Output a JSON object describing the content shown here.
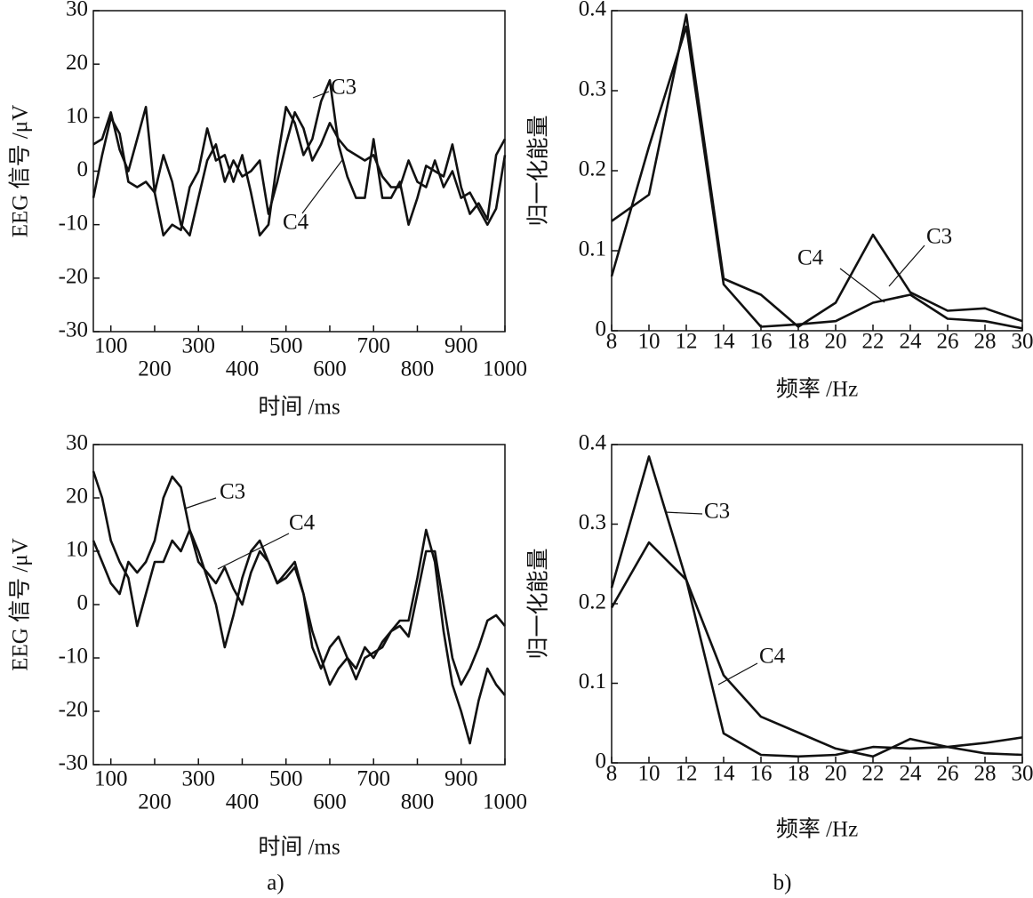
{
  "chart_data": [
    {
      "type": "line",
      "ylabel": "EEG 信号 /μV",
      "xlabel": "时间 /ms",
      "xlim": [
        60,
        1000
      ],
      "xticks": [
        100,
        200,
        300,
        400,
        500,
        600,
        700,
        800,
        900,
        1000
      ],
      "ylim": [
        -30,
        30
      ],
      "yticks": [
        -30,
        -20,
        -10,
        0,
        10,
        20,
        30
      ],
      "x": [
        60,
        80,
        100,
        120,
        140,
        160,
        180,
        200,
        220,
        240,
        260,
        280,
        300,
        320,
        340,
        360,
        380,
        400,
        420,
        440,
        460,
        480,
        500,
        520,
        540,
        560,
        580,
        600,
        620,
        640,
        660,
        680,
        700,
        720,
        740,
        760,
        780,
        800,
        820,
        840,
        860,
        880,
        900,
        920,
        940,
        960,
        980,
        1000
      ],
      "series": [
        {
          "name": "C3",
          "color": "#111111",
          "values": [
            5,
            6,
            11,
            4,
            0,
            6,
            12,
            -4,
            -12,
            -10,
            -11,
            -3,
            0,
            8,
            2,
            3,
            -2,
            3,
            -4,
            -12,
            -10,
            2,
            12,
            9,
            3,
            6,
            13,
            17,
            5,
            -1,
            -5,
            -5,
            6,
            -5,
            -5,
            -2,
            -10,
            -5,
            1,
            0,
            -1,
            5,
            -3,
            -8,
            -6,
            -9,
            3,
            6
          ]
        },
        {
          "name": "C4",
          "color": "#111111",
          "values": [
            -5,
            3,
            10,
            7,
            -2,
            -3,
            -2,
            -4,
            3,
            -2,
            -10,
            -12,
            -5,
            2,
            5,
            -2,
            2,
            -1,
            0,
            2,
            -8,
            -2,
            5,
            11,
            8,
            2,
            5,
            9,
            6,
            4,
            3,
            2,
            3,
            -1,
            -3,
            -3,
            2,
            -2,
            -3,
            2,
            -3,
            0,
            -5,
            -4,
            -7,
            -10,
            -7,
            3
          ]
        }
      ]
    },
    {
      "type": "line",
      "ylabel": "归一化能量",
      "xlabel": "频率 /Hz",
      "xlim": [
        8,
        30
      ],
      "xticks": [
        8,
        10,
        12,
        14,
        16,
        18,
        20,
        22,
        24,
        26,
        28,
        30
      ],
      "ylim": [
        0,
        0.4
      ],
      "yticks": [
        0,
        0.1,
        0.2,
        0.3,
        0.4
      ],
      "x": [
        8,
        10,
        12,
        14,
        16,
        18,
        20,
        22,
        24,
        26,
        28,
        30
      ],
      "series": [
        {
          "name": "C3",
          "color": "#111111",
          "values": [
            0.137,
            0.17,
            0.395,
            0.065,
            0.045,
            0.005,
            0.035,
            0.12,
            0.048,
            0.025,
            0.028,
            0.012
          ]
        },
        {
          "name": "C4",
          "color": "#111111",
          "values": [
            0.068,
            0.23,
            0.38,
            0.058,
            0.005,
            0.008,
            0.012,
            0.035,
            0.045,
            0.015,
            0.012,
            0.003
          ]
        }
      ]
    },
    {
      "type": "line",
      "ylabel": "EEG 信号 /μV",
      "xlabel": "时间 /ms",
      "xlim": [
        60,
        1000
      ],
      "xticks": [
        100,
        200,
        300,
        400,
        500,
        600,
        700,
        800,
        900,
        1000
      ],
      "ylim": [
        -30,
        30
      ],
      "yticks": [
        -30,
        -20,
        -10,
        0,
        10,
        20,
        30
      ],
      "x": [
        60,
        80,
        100,
        120,
        140,
        160,
        180,
        200,
        220,
        240,
        260,
        280,
        300,
        320,
        340,
        360,
        380,
        400,
        420,
        440,
        460,
        480,
        500,
        520,
        540,
        560,
        580,
        600,
        620,
        640,
        660,
        680,
        700,
        720,
        740,
        760,
        780,
        800,
        820,
        840,
        860,
        880,
        900,
        920,
        940,
        960,
        980,
        1000
      ],
      "series": [
        {
          "name": "C3",
          "color": "#111111",
          "values": [
            12,
            8,
            4,
            2,
            8,
            6,
            8,
            12,
            20,
            24,
            22,
            14,
            8,
            6,
            4,
            7,
            3,
            0,
            6,
            10,
            8,
            4,
            5,
            7,
            2,
            -5,
            -10,
            -15,
            -12,
            -10,
            -12,
            -8,
            -10,
            -7,
            -5,
            -3,
            -3,
            5,
            14,
            8,
            -5,
            -15,
            -20,
            -26,
            -18,
            -12,
            -15,
            -17
          ]
        },
        {
          "name": "C4",
          "color": "#111111",
          "values": [
            25,
            20,
            12,
            8,
            5,
            -4,
            2,
            8,
            8,
            12,
            10,
            14,
            10,
            5,
            0,
            -8,
            -2,
            5,
            10,
            12,
            8,
            4,
            6,
            8,
            2,
            -8,
            -12,
            -8,
            -6,
            -10,
            -14,
            -10,
            -9,
            -8,
            -5,
            -4,
            -6,
            2,
            10,
            10,
            0,
            -10,
            -15,
            -12,
            -8,
            -3,
            -2,
            -4
          ]
        }
      ]
    },
    {
      "type": "line",
      "ylabel": "归一化能量",
      "xlabel": "频率 /Hz",
      "xlim": [
        8,
        30
      ],
      "xticks": [
        8,
        10,
        12,
        14,
        16,
        18,
        20,
        22,
        24,
        26,
        28,
        30
      ],
      "ylim": [
        0,
        0.4
      ],
      "yticks": [
        0,
        0.1,
        0.2,
        0.3,
        0.4
      ],
      "x": [
        8,
        10,
        12,
        14,
        16,
        18,
        20,
        22,
        24,
        26,
        28,
        30
      ],
      "series": [
        {
          "name": "C3",
          "color": "#111111",
          "values": [
            0.22,
            0.385,
            0.23,
            0.11,
            0.058,
            0.038,
            0.018,
            0.008,
            0.03,
            0.02,
            0.012,
            0.01
          ]
        },
        {
          "name": "C4",
          "color": "#111111",
          "values": [
            0.195,
            0.277,
            0.23,
            0.037,
            0.01,
            0.008,
            0.01,
            0.02,
            0.018,
            0.02,
            0.025,
            0.032
          ]
        }
      ]
    }
  ],
  "captions": [
    "a)",
    "b)"
  ]
}
